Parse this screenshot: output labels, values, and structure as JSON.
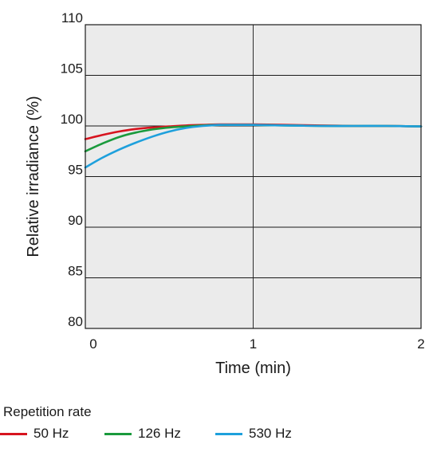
{
  "chart_data": {
    "type": "line",
    "title": "",
    "xlabel": "Time (min)",
    "ylabel": "Relative irradiance (%)",
    "xlim": [
      0,
      2
    ],
    "ylim": [
      80,
      110
    ],
    "xticks": [
      0,
      1,
      2
    ],
    "yticks": [
      80,
      85,
      90,
      95,
      100,
      105,
      110
    ],
    "grid": true,
    "legend_title": "Repetition rate",
    "legend_position": "bottom",
    "series": [
      {
        "name": "50 Hz",
        "color": "#d7141f",
        "x": [
          0,
          0.1,
          0.2,
          0.3,
          0.4,
          0.5,
          0.6,
          0.7,
          0.8,
          0.9,
          1.0,
          1.2,
          1.4,
          1.6,
          1.8,
          2.0
        ],
        "y": [
          98.7,
          99.1,
          99.45,
          99.7,
          99.85,
          99.95,
          100.05,
          100.1,
          100.15,
          100.15,
          100.15,
          100.1,
          100.05,
          100.0,
          100.0,
          99.95
        ]
      },
      {
        "name": "126 Hz",
        "color": "#1a9a3c",
        "x": [
          0,
          0.1,
          0.2,
          0.3,
          0.4,
          0.5,
          0.6,
          0.7,
          0.8,
          0.9,
          1.0,
          1.2,
          1.4,
          1.6,
          1.8,
          2.0
        ],
        "y": [
          97.5,
          98.25,
          98.9,
          99.35,
          99.65,
          99.85,
          99.95,
          100.05,
          100.1,
          100.1,
          100.1,
          100.05,
          100.0,
          100.0,
          100.0,
          99.95
        ]
      },
      {
        "name": "530 Hz",
        "color": "#1ea0dc",
        "x": [
          0,
          0.1,
          0.2,
          0.3,
          0.4,
          0.5,
          0.6,
          0.7,
          0.8,
          0.9,
          1.0,
          1.2,
          1.4,
          1.6,
          1.8,
          2.0
        ],
        "y": [
          95.9,
          96.85,
          97.65,
          98.35,
          98.95,
          99.45,
          99.8,
          100.0,
          100.1,
          100.1,
          100.1,
          100.05,
          100.0,
          100.0,
          100.0,
          99.95
        ]
      }
    ]
  }
}
